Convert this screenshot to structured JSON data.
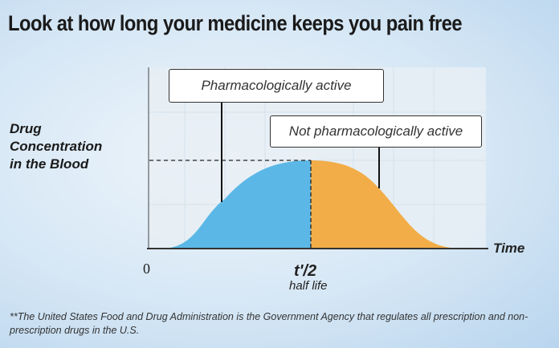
{
  "title": "Look at how long your medicine keeps you pain free",
  "y_axis_label": "Drug\nConcentration\nin the Blood",
  "x_axis_label": "Time",
  "x_origin_label": "0",
  "half_life_symbol": "t'/2",
  "half_life_label": "half life",
  "annotations": {
    "active": "Pharmacologically active",
    "inactive": "Not pharmacologically active"
  },
  "colors": {
    "active": "#5bb8e6",
    "inactive": "#f2ad48",
    "plot_bg": "#e9f0f6"
  },
  "footnote": "**The United States Food and Drug Administration is the Government Agency that regulates all prescription and non-prescription drugs in the U.S."
}
